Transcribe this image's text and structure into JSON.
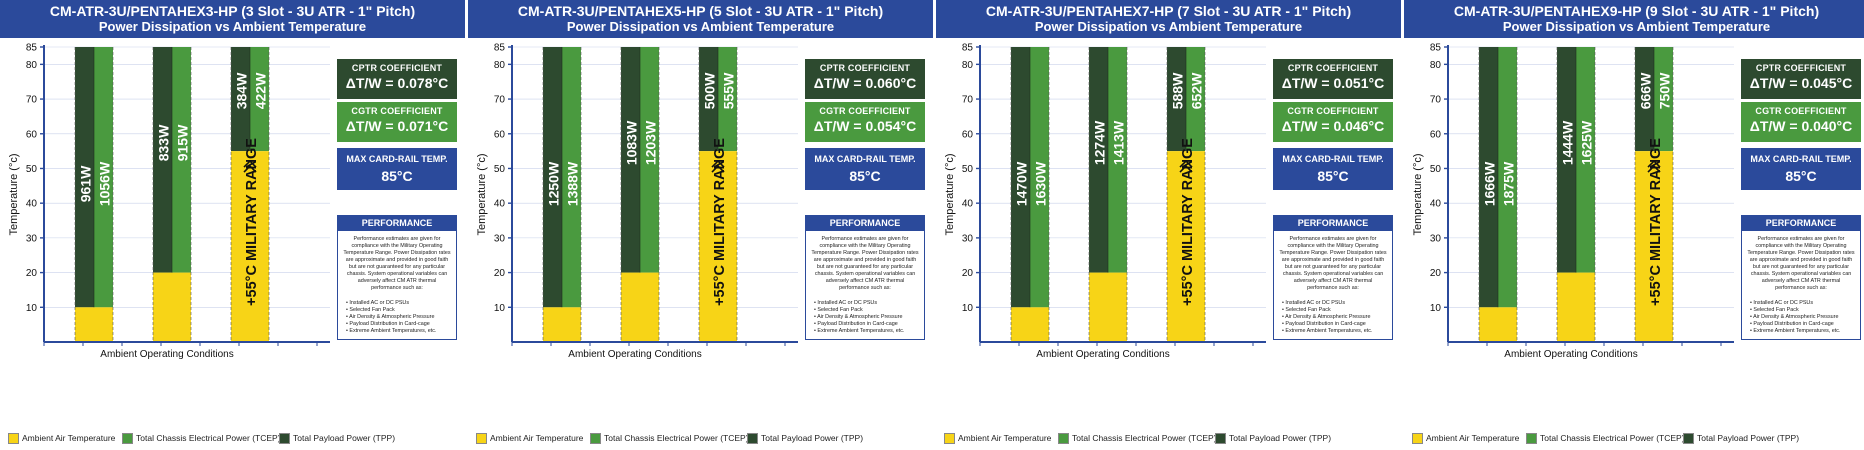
{
  "colors": {
    "header_bg": "#2b4a9b",
    "ambient": "#f7d417",
    "tcep": "#4a9a3f",
    "tpp": "#2d4a2f",
    "axis": "#2b4a9b"
  },
  "legend": {
    "ambient": "Ambient Air Temperature",
    "tcep": "Total Chassis Electrical Power (TCEP)",
    "tpp": "Total Payload Power (TPP)"
  },
  "chart_data": [
    {
      "type": "bar",
      "title": "CM-ATR-3U/PENTAHEX3-HP (3 Slot - 3U ATR - 1\" Pitch)",
      "subtitle": "Power Dissipation vs Ambient Temperature",
      "xlabel": "Ambient Operating Conditions",
      "ylabel": "Temperature (°c)",
      "ylim": [
        0,
        85
      ],
      "yticks": [
        10,
        20,
        30,
        40,
        50,
        60,
        70,
        80,
        85
      ],
      "series": [
        {
          "name": "Ambient Air Temperature",
          "values": [
            10,
            20,
            55
          ]
        },
        {
          "name": "Total Payload Power (TPP)",
          "labels": [
            "961W",
            "833W",
            "384W"
          ]
        },
        {
          "name": "Total Chassis Electrical Power (TCEP)",
          "labels": [
            "1056W",
            "915W",
            "422W"
          ]
        }
      ],
      "military_label": "+55°C MILITARY RANGE",
      "cptr_title": "CPTR COEFFICIENT",
      "cptr_value": "ΔT/W = 0.078°C",
      "cgtr_title": "CGTR COEFFICIENT",
      "cgtr_value": "ΔT/W = 0.071°C",
      "max_title": "MAX CARD-RAIL TEMP.",
      "max_value": "85°C",
      "perf_title": "PERFORMANCE",
      "perf_text": "Performance estimates are given for compliance with the Military Operating Temperature Range. Power Dissipation rates are approximate and provided in good faith but are not guaranteed for any particular chassis. System operational variables can adversely affect CM ATR thermal performance such as:",
      "perf_bullets": [
        "Installed AC or DC PSUs",
        "Selected Fan Pack",
        "Air Density & Atmospheric Pressure",
        "Payload Distribution in Card-cage",
        "Extreme Ambient Temperatures, etc."
      ]
    },
    {
      "type": "bar",
      "title": "CM-ATR-3U/PENTAHEX5-HP (5 Slot - 3U ATR - 1\" Pitch)",
      "subtitle": "Power Dissipation vs Ambient Temperature",
      "xlabel": "Ambient Operating Conditions",
      "ylabel": "Temperature (°c)",
      "ylim": [
        0,
        85
      ],
      "yticks": [
        10,
        20,
        30,
        40,
        50,
        60,
        70,
        80,
        85
      ],
      "series": [
        {
          "name": "Ambient Air Temperature",
          "values": [
            10,
            20,
            55
          ]
        },
        {
          "name": "Total Payload Power (TPP)",
          "labels": [
            "1250W",
            "1083W",
            "500W"
          ]
        },
        {
          "name": "Total Chassis Electrical Power (TCEP)",
          "labels": [
            "1388W",
            "1203W",
            "555W"
          ]
        }
      ],
      "military_label": "+55°C MILITARY RANGE",
      "cptr_title": "CPTR COEFFICIENT",
      "cptr_value": "ΔT/W = 0.060°C",
      "cgtr_title": "CGTR COEFFICIENT",
      "cgtr_value": "ΔT/W = 0.054°C",
      "max_title": "MAX CARD-RAIL TEMP.",
      "max_value": "85°C",
      "perf_title": "PERFORMANCE",
      "perf_text": "Performance estimates are given for compliance with the Military Operating Temperature Range. Power Dissipation rates are approximate and provided in good faith but are not guaranteed for any particular chassis. System operational variables can adversely affect CM ATR thermal performance such as:",
      "perf_bullets": [
        "Installed AC or DC PSUs",
        "Selected Fan Pack",
        "Air Density & Atmospheric Pressure",
        "Payload Distribution in Card-cage",
        "Extreme Ambient Temperatures, etc."
      ]
    },
    {
      "type": "bar",
      "title": "CM-ATR-3U/PENTAHEX7-HP (7 Slot - 3U ATR - 1\" Pitch)",
      "subtitle": "Power Dissipation vs Ambient Temperature",
      "xlabel": "Ambient Operating Conditions",
      "ylabel": "Temperature (°c)",
      "ylim": [
        0,
        85
      ],
      "yticks": [
        10,
        20,
        30,
        40,
        50,
        60,
        70,
        80,
        85
      ],
      "series": [
        {
          "name": "Ambient Air Temperature",
          "values": [
            10,
            20,
            55
          ]
        },
        {
          "name": "Total Payload Power (TPP)",
          "labels": [
            "1470W",
            "1274W",
            "588W"
          ]
        },
        {
          "name": "Total Chassis Electrical Power (TCEP)",
          "labels": [
            "1630W",
            "1413W",
            "652W"
          ]
        }
      ],
      "military_label": "+55°C MILITARY RANGE",
      "cptr_title": "CPTR COEFFICIENT",
      "cptr_value": "ΔT/W = 0.051°C",
      "cgtr_title": "CGTR COEFFICIENT",
      "cgtr_value": "ΔT/W = 0.046°C",
      "max_title": "MAX CARD-RAIL TEMP.",
      "max_value": "85°C",
      "perf_title": "PERFORMANCE",
      "perf_text": "Performance estimates are given for compliance with the Military Operating Temperature Range. Power Dissipation rates are approximate and provided in good faith but are not guaranteed for any particular chassis. System operational variables can adversely affect CM ATR thermal performance such as:",
      "perf_bullets": [
        "Installed AC or DC PSUs",
        "Selected Fan Pack",
        "Air Density & Atmospheric Pressure",
        "Payload Distribution in Card-cage",
        "Extreme Ambient Temperatures, etc."
      ]
    },
    {
      "type": "bar",
      "title": "CM-ATR-3U/PENTAHEX9-HP (9 Slot - 3U ATR - 1\" Pitch)",
      "subtitle": "Power Dissipation vs Ambient Temperature",
      "xlabel": "Ambient Operating Conditions",
      "ylabel": "Temperature (°c)",
      "ylim": [
        0,
        85
      ],
      "yticks": [
        10,
        20,
        30,
        40,
        50,
        60,
        70,
        80,
        85
      ],
      "series": [
        {
          "name": "Ambient Air Temperature",
          "values": [
            10,
            20,
            55
          ]
        },
        {
          "name": "Total Payload Power (TPP)",
          "labels": [
            "1666W",
            "1444W",
            "666W"
          ]
        },
        {
          "name": "Total Chassis Electrical Power (TCEP)",
          "labels": [
            "1875W",
            "1625W",
            "750W"
          ]
        }
      ],
      "military_label": "+55°C MILITARY RANGE",
      "cptr_title": "CPTR COEFFICIENT",
      "cptr_value": "ΔT/W = 0.045°C",
      "cgtr_title": "CGTR COEFFICIENT",
      "cgtr_value": "ΔT/W = 0.040°C",
      "max_title": "MAX CARD-RAIL TEMP.",
      "max_value": "85°C",
      "perf_title": "PERFORMANCE",
      "perf_text": "Performance estimates are given for compliance with the Military Operating Temperature Range. Power Dissipation rates are approximate and provided in good faith but are not guaranteed for any particular chassis. System operational variables can adversely affect CM ATR thermal performance such as:",
      "perf_bullets": [
        "Installed AC or DC PSUs",
        "Selected Fan Pack",
        "Air Density & Atmospheric Pressure",
        "Payload Distribution in Card-cage",
        "Extreme Ambient Temperatures, etc."
      ]
    }
  ]
}
